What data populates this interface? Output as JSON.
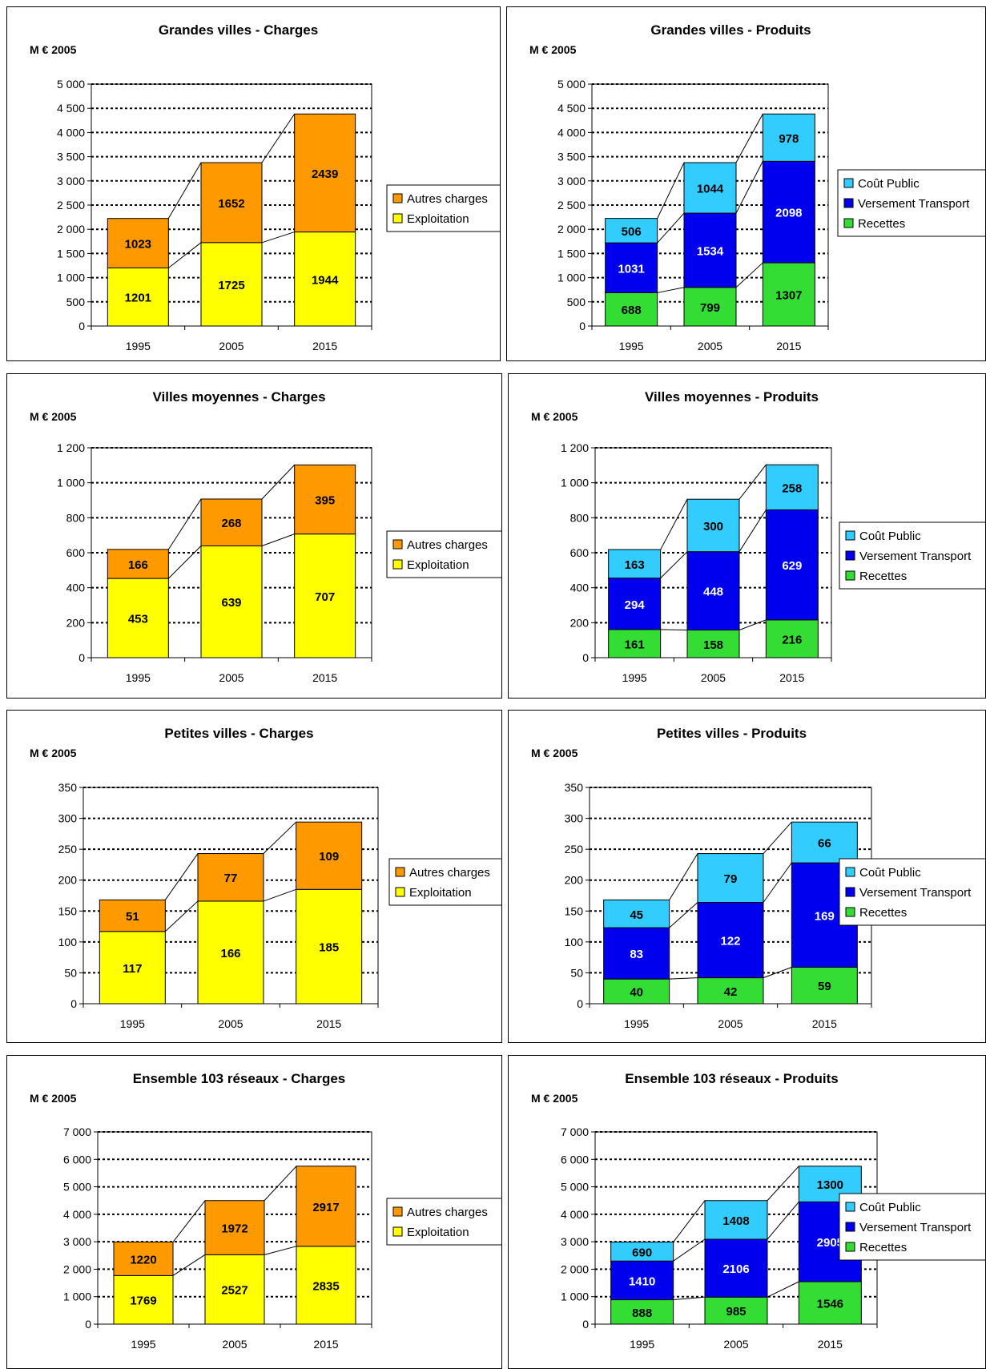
{
  "colors": {
    "autres_charges": "#ff9900",
    "exploitation": "#ffff00",
    "cout_public": "#33ccff",
    "versement_transport": "#0000ee",
    "recettes": "#33dd33"
  },
  "chart_data": [
    {
      "type": "bar",
      "stacked": true,
      "title": "Grandes villes - Charges",
      "unit_label": "M € 2005",
      "categories": [
        "1995",
        "2005",
        "2015"
      ],
      "ylim": [
        0,
        5000
      ],
      "yticks": [
        "0",
        "500",
        "1 000",
        "1 500",
        "2 000",
        "2 500",
        "3 000",
        "3 500",
        "4 000",
        "4 500",
        "5 000"
      ],
      "legend_placement": "right",
      "series": [
        {
          "name": "Exploitation",
          "color": "#ffff00",
          "values": [
            1201,
            1725,
            1944
          ],
          "labels": [
            "1201",
            "1725",
            "1944"
          ]
        },
        {
          "name": "Autres charges",
          "color": "#ff9900",
          "values": [
            1023,
            1652,
            2439
          ],
          "labels": [
            "1023",
            "1652",
            "2439"
          ]
        }
      ],
      "legend": [
        "Autres charges",
        "Exploitation"
      ]
    },
    {
      "type": "bar",
      "stacked": true,
      "title": "Grandes villes - Produits",
      "unit_label": "M € 2005",
      "categories": [
        "1995",
        "2005",
        "2015"
      ],
      "ylim": [
        0,
        5000
      ],
      "yticks": [
        "0",
        "500",
        "1 000",
        "1 500",
        "2 000",
        "2 500",
        "3 000",
        "3 500",
        "4 000",
        "4 500",
        "5 000"
      ],
      "legend_placement": "right",
      "series": [
        {
          "name": "Recettes",
          "color": "#33dd33",
          "values": [
            688,
            799,
            1307
          ],
          "labels": [
            "688",
            "799",
            "1307"
          ]
        },
        {
          "name": "Versement Transport",
          "color": "#0000ee",
          "values": [
            1031,
            1534,
            2098
          ],
          "labels": [
            "1031",
            "1534",
            "2098"
          ]
        },
        {
          "name": "Coût Public",
          "color": "#33ccff",
          "values": [
            506,
            1044,
            978
          ],
          "labels": [
            "506",
            "1044",
            "978"
          ]
        }
      ],
      "legend": [
        "Coût Public",
        "Versement Transport",
        "Recettes"
      ]
    },
    {
      "type": "bar",
      "stacked": true,
      "title": "Villes moyennes - Charges",
      "unit_label": "M € 2005",
      "categories": [
        "1995",
        "2005",
        "2015"
      ],
      "ylim": [
        0,
        1200
      ],
      "yticks": [
        "0",
        "200",
        "400",
        "600",
        "800",
        "1 000",
        "1 200"
      ],
      "legend_placement": "right",
      "series": [
        {
          "name": "Exploitation",
          "color": "#ffff00",
          "values": [
            453,
            639,
            707
          ],
          "labels": [
            "453",
            "639",
            "707"
          ]
        },
        {
          "name": "Autres charges",
          "color": "#ff9900",
          "values": [
            166,
            268,
            395
          ],
          "labels": [
            "166",
            "268",
            "395"
          ]
        }
      ],
      "legend": [
        "Autres charges",
        "Exploitation"
      ]
    },
    {
      "type": "bar",
      "stacked": true,
      "title": "Villes moyennes - Produits",
      "unit_label": "M € 2005",
      "categories": [
        "1995",
        "2005",
        "2015"
      ],
      "ylim": [
        0,
        1200
      ],
      "yticks": [
        "0",
        "200",
        "400",
        "600",
        "800",
        "1 000",
        "1 200"
      ],
      "legend_placement": "right",
      "series": [
        {
          "name": "Recettes",
          "color": "#33dd33",
          "values": [
            161,
            158,
            216
          ],
          "labels": [
            "161",
            "158",
            "216"
          ]
        },
        {
          "name": "Versement Transport",
          "color": "#0000ee",
          "values": [
            294,
            448,
            629
          ],
          "labels": [
            "294",
            "448",
            "629"
          ]
        },
        {
          "name": "Coût Public",
          "color": "#33ccff",
          "values": [
            163,
            300,
            258
          ],
          "labels": [
            "163",
            "300",
            "258"
          ]
        }
      ],
      "legend": [
        "Coût Public",
        "Versement Transport",
        "Recettes"
      ]
    },
    {
      "type": "bar",
      "stacked": true,
      "title": "Petites villes - Charges",
      "unit_label": "M € 2005",
      "categories": [
        "1995",
        "2005",
        "2015"
      ],
      "ylim": [
        0,
        350
      ],
      "yticks": [
        "0",
        "50",
        "100",
        "150",
        "200",
        "250",
        "300",
        "350"
      ],
      "legend_placement": "right",
      "series": [
        {
          "name": "Exploitation",
          "color": "#ffff00",
          "values": [
            117,
            166,
            185
          ],
          "labels": [
            "117",
            "166",
            "185"
          ]
        },
        {
          "name": "Autres charges",
          "color": "#ff9900",
          "values": [
            51,
            77,
            109
          ],
          "labels": [
            "51",
            "77",
            "109"
          ]
        }
      ],
      "legend": [
        "Autres charges",
        "Exploitation"
      ]
    },
    {
      "type": "bar",
      "stacked": true,
      "title": "Petites villes - Produits",
      "unit_label": "M € 2005",
      "categories": [
        "1995",
        "2005",
        "2015"
      ],
      "ylim": [
        0,
        350
      ],
      "yticks": [
        "0",
        "50",
        "100",
        "150",
        "200",
        "250",
        "300",
        "350"
      ],
      "legend_placement": "right",
      "series": [
        {
          "name": "Recettes",
          "color": "#33dd33",
          "values": [
            40,
            42,
            59
          ],
          "labels": [
            "40",
            "42",
            "59"
          ]
        },
        {
          "name": "Versement Transport",
          "color": "#0000ee",
          "values": [
            83,
            122,
            169
          ],
          "labels": [
            "83",
            "122",
            "169"
          ]
        },
        {
          "name": "Coût Public",
          "color": "#33ccff",
          "values": [
            45,
            79,
            66
          ],
          "labels": [
            "45",
            "79",
            "66"
          ]
        }
      ],
      "legend": [
        "Coût Public",
        "Versement Transport",
        "Recettes"
      ]
    },
    {
      "type": "bar",
      "stacked": true,
      "title": "Ensemble 103 réseaux - Charges",
      "unit_label": "M € 2005",
      "categories": [
        "1995",
        "2005",
        "2015"
      ],
      "ylim": [
        0,
        7000
      ],
      "yticks": [
        "0",
        "1 000",
        "2 000",
        "3 000",
        "4 000",
        "5 000",
        "6 000",
        "7 000"
      ],
      "legend_placement": "right",
      "series": [
        {
          "name": "Exploitation",
          "color": "#ffff00",
          "values": [
            1769,
            2527,
            2835
          ],
          "labels": [
            "1769",
            "2527",
            "2835"
          ]
        },
        {
          "name": "Autres charges",
          "color": "#ff9900",
          "values": [
            1220,
            1972,
            2917
          ],
          "labels": [
            "1220",
            "1972",
            "2917"
          ]
        }
      ],
      "legend": [
        "Autres charges",
        "Exploitation"
      ]
    },
    {
      "type": "bar",
      "stacked": true,
      "title": "Ensemble 103 réseaux - Produits",
      "unit_label": "M € 2005",
      "categories": [
        "1995",
        "2005",
        "2015"
      ],
      "ylim": [
        0,
        7000
      ],
      "yticks": [
        "0",
        "1 000",
        "2 000",
        "3 000",
        "4 000",
        "5 000",
        "6 000",
        "7 000"
      ],
      "legend_placement": "right",
      "series": [
        {
          "name": "Recettes",
          "color": "#33dd33",
          "values": [
            888,
            985,
            1546
          ],
          "labels": [
            "888",
            "985",
            "1546"
          ]
        },
        {
          "name": "Versement Transport",
          "color": "#0000ee",
          "values": [
            1410,
            2106,
            2905
          ],
          "labels": [
            "1410",
            "2106",
            "2905"
          ]
        },
        {
          "name": "Coût Public",
          "color": "#33ccff",
          "values": [
            690,
            1408,
            1300
          ],
          "labels": [
            "690",
            "1408",
            "1300"
          ]
        }
      ],
      "legend": [
        "Coût Public",
        "Versement Transport",
        "Recettes"
      ]
    }
  ]
}
